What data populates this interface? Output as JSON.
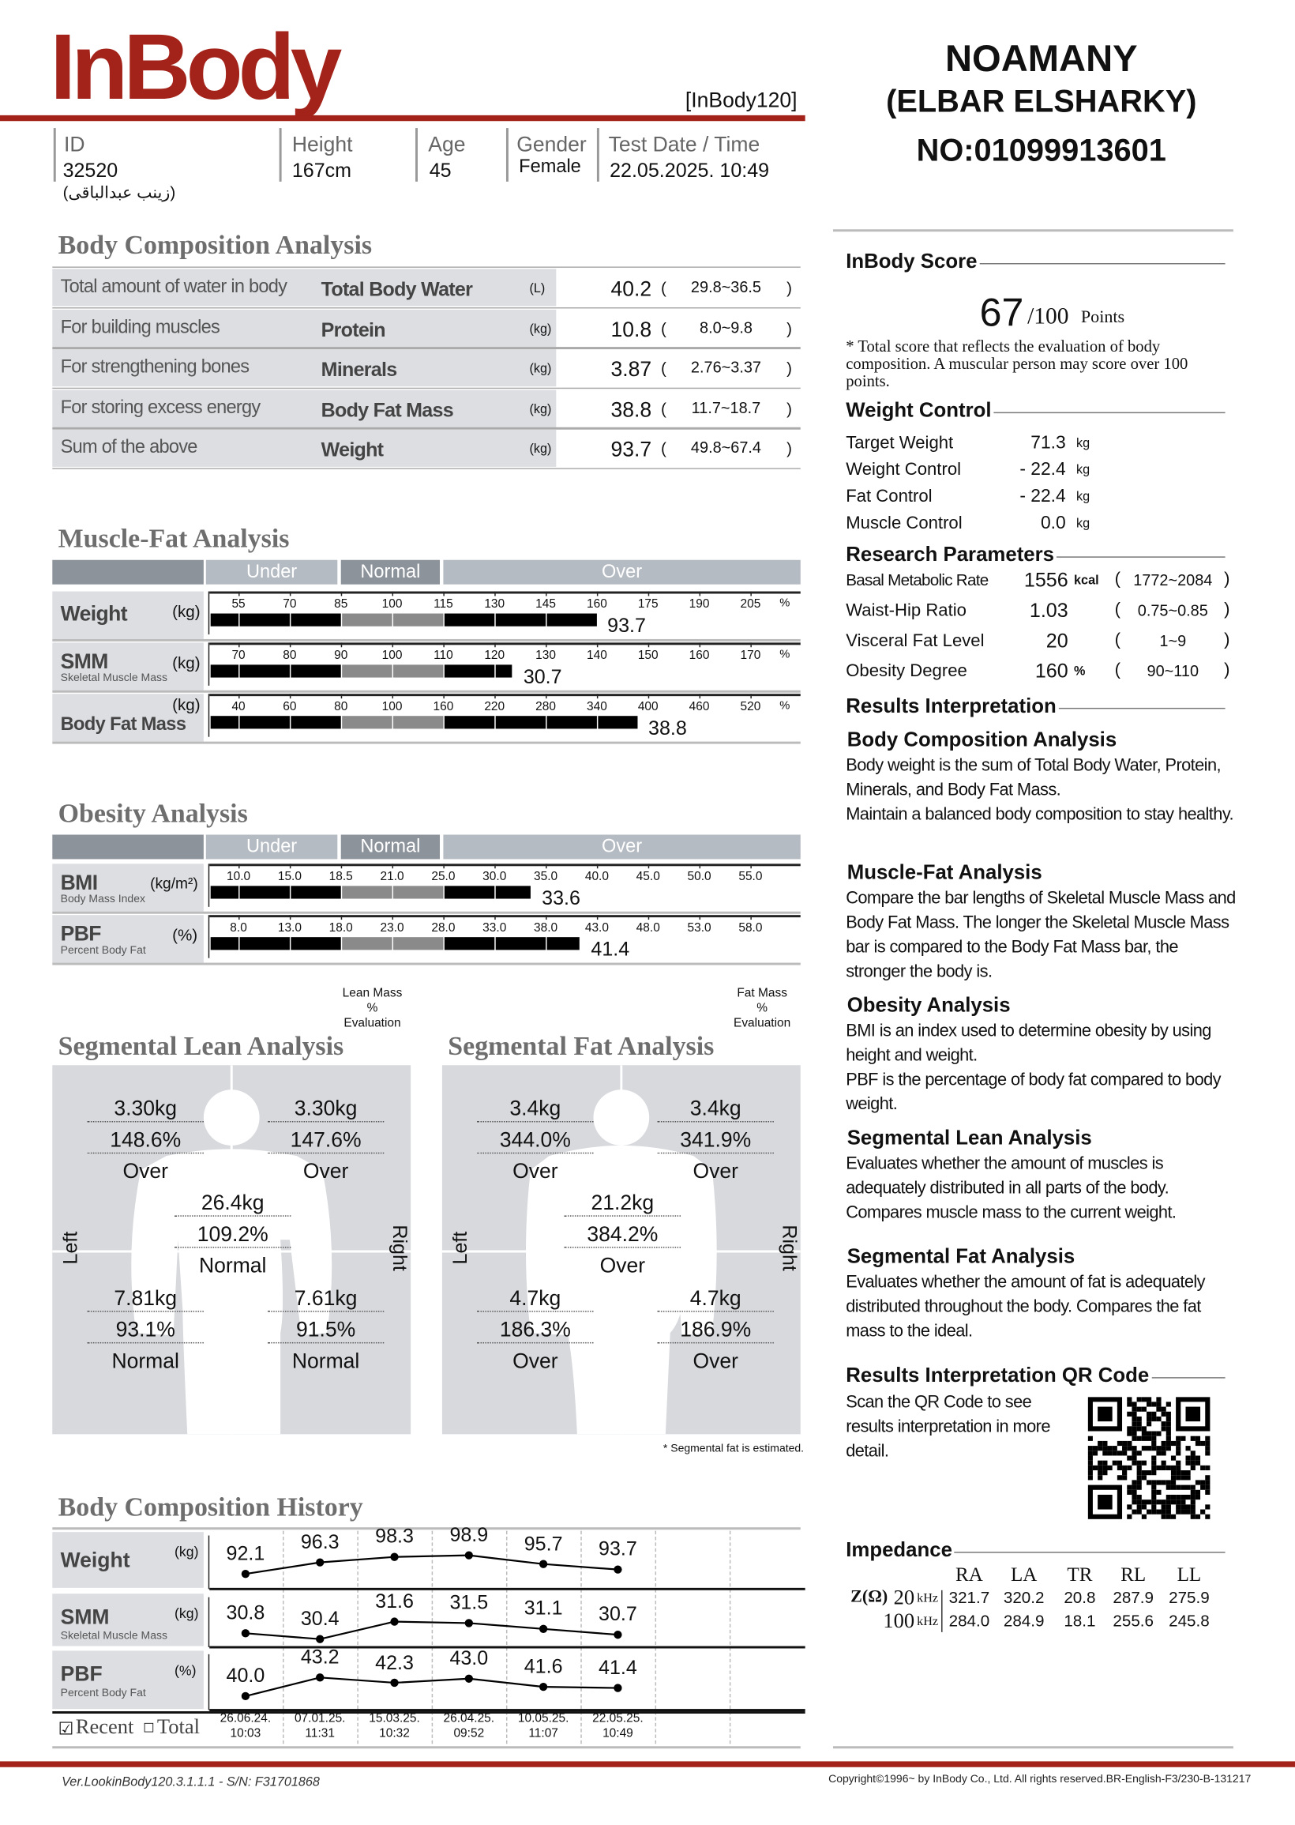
{
  "header": {
    "logo": "InBody",
    "model": "[InBody120]",
    "brand_color": "#a3231a",
    "id_label": "ID",
    "id": "32520",
    "name": "(زينب عبدالباقى)",
    "height_label": "Height",
    "height": "167cm",
    "age_label": "Age",
    "age": "45",
    "gender_label": "Gender",
    "gender": "Female",
    "date_label": "Test Date / Time",
    "date": "22.05.2025. 10:49"
  },
  "clinic": {
    "line1": "NOAMANY",
    "line2": "(ELBAR ELSHARKY)",
    "line3": "NO:01099913601"
  },
  "bca": {
    "title": "Body Composition Analysis",
    "rows": [
      {
        "desc": "Total amount of water in body",
        "name": "Total Body Water",
        "unit": "(L)",
        "value": "40.2",
        "range": "29.8~36.5"
      },
      {
        "desc": "For building muscles",
        "name": "Protein",
        "unit": "(kg)",
        "value": "10.8",
        "range": "8.0~9.8"
      },
      {
        "desc": "For strengthening bones",
        "name": "Minerals",
        "unit": "(kg)",
        "value": "3.87",
        "range": "2.76~3.37"
      },
      {
        "desc": "For storing excess energy",
        "name": "Body Fat Mass",
        "unit": "(kg)",
        "value": "38.8",
        "range": "11.7~18.7"
      },
      {
        "desc": "Sum of the above",
        "name": "Weight",
        "unit": "(kg)",
        "value": "93.7",
        "range": "49.8~67.4"
      }
    ]
  },
  "mfa": {
    "title": "Muscle-Fat Analysis",
    "bands": [
      "Under",
      "Normal",
      "Over"
    ],
    "rows": [
      {
        "name": "Weight",
        "sub": "",
        "unit": "(kg)",
        "ticks": [
          "55",
          "70",
          "85",
          "100",
          "115",
          "130",
          "145",
          "160",
          "175",
          "190",
          "205"
        ],
        "tick_unit": "%",
        "value": "93.7",
        "percent_of_standard": 160
      },
      {
        "name": "SMM",
        "sub": "Skeletal Muscle Mass",
        "unit": "(kg)",
        "ticks": [
          "70",
          "80",
          "90",
          "100",
          "110",
          "120",
          "130",
          "140",
          "150",
          "160",
          "170"
        ],
        "tick_unit": "%",
        "value": "30.7",
        "percent_of_standard": 123.6
      },
      {
        "name": "Body Fat Mass",
        "sub": "",
        "unit": "(kg)",
        "ticks": [
          "40",
          "60",
          "80",
          "100",
          "160",
          "220",
          "280",
          "340",
          "400",
          "460",
          "520"
        ],
        "tick_unit": "%",
        "value": "38.8",
        "percent_of_standard": 388
      }
    ]
  },
  "oa": {
    "title": "Obesity Analysis",
    "bands": [
      "Under",
      "Normal",
      "Over"
    ],
    "rows": [
      {
        "name": "BMI",
        "sub": "Body Mass Index",
        "unit": "(kg/m²)",
        "ticks": [
          "10.0",
          "15.0",
          "18.5",
          "21.0",
          "25.0",
          "30.0",
          "35.0",
          "40.0",
          "45.0",
          "50.0",
          "55.0"
        ],
        "value": "33.6"
      },
      {
        "name": "PBF",
        "sub": "Percent Body Fat",
        "unit": "(%)",
        "ticks": [
          "8.0",
          "13.0",
          "18.0",
          "23.0",
          "28.0",
          "33.0",
          "38.0",
          "43.0",
          "48.0",
          "53.0",
          "58.0"
        ],
        "value": "41.4"
      }
    ]
  },
  "sla": {
    "title": "Segmental Lean Analysis",
    "legend": [
      "Lean Mass",
      "%",
      "Evaluation"
    ],
    "left": "Left",
    "right": "Right",
    "segments": [
      {
        "name": "left-arm",
        "kg": "3.30kg",
        "pct": "148.6%",
        "eval": "Over"
      },
      {
        "name": "right-arm",
        "kg": "3.30kg",
        "pct": "147.6%",
        "eval": "Over"
      },
      {
        "name": "trunk",
        "kg": "26.4kg",
        "pct": "109.2%",
        "eval": "Normal"
      },
      {
        "name": "left-leg",
        "kg": "7.81kg",
        "pct": "93.1%",
        "eval": "Normal"
      },
      {
        "name": "right-leg",
        "kg": "7.61kg",
        "pct": "91.5%",
        "eval": "Normal"
      }
    ]
  },
  "sfa": {
    "title": "Segmental Fat Analysis",
    "legend": [
      "Fat Mass",
      "%",
      "Evaluation"
    ],
    "left": "Left",
    "right": "Right",
    "note": "* Segmental fat is estimated.",
    "segments": [
      {
        "name": "left-arm",
        "kg": "3.4kg",
        "pct": "344.0%",
        "eval": "Over"
      },
      {
        "name": "right-arm",
        "kg": "3.4kg",
        "pct": "341.9%",
        "eval": "Over"
      },
      {
        "name": "trunk",
        "kg": "21.2kg",
        "pct": "384.2%",
        "eval": "Over"
      },
      {
        "name": "left-leg",
        "kg": "4.7kg",
        "pct": "186.3%",
        "eval": "Over"
      },
      {
        "name": "right-leg",
        "kg": "4.7kg",
        "pct": "186.9%",
        "eval": "Over"
      }
    ]
  },
  "history": {
    "title": "Body Composition History",
    "recent_label": "Recent",
    "total_label": "Total",
    "recent_checked": true,
    "dates": [
      [
        "26.06.24.",
        "10:03"
      ],
      [
        "07.01.25.",
        "11:31"
      ],
      [
        "15.03.25.",
        "10:32"
      ],
      [
        "26.04.25.",
        "09:52"
      ],
      [
        "10.05.25.",
        "11:07"
      ],
      [
        "22.05.25.",
        "10:49"
      ]
    ],
    "rows": [
      {
        "name": "Weight",
        "sub": "",
        "unit": "(kg)",
        "values": [
          "92.1",
          "96.3",
          "98.3",
          "98.9",
          "95.7",
          "93.7"
        ]
      },
      {
        "name": "SMM",
        "sub": "Skeletal Muscle Mass",
        "unit": "(kg)",
        "values": [
          "30.8",
          "30.4",
          "31.6",
          "31.5",
          "31.1",
          "30.7"
        ]
      },
      {
        "name": "PBF",
        "sub": "Percent Body Fat",
        "unit": "(%)",
        "values": [
          "40.0",
          "43.2",
          "42.3",
          "43.0",
          "41.6",
          "41.4"
        ]
      }
    ]
  },
  "score": {
    "title": "InBody Score",
    "value": "67",
    "max": "/100",
    "unit": "Points",
    "note": "* Total score that reflects the evaluation of body composition. A muscular person may score over 100 points."
  },
  "weight_control": {
    "title": "Weight Control",
    "rows": [
      {
        "label": "Target Weight",
        "value": "71.3",
        "unit": "kg"
      },
      {
        "label": "Weight Control",
        "value": "- 22.4",
        "unit": "kg"
      },
      {
        "label": "Fat Control",
        "value": "- 22.4",
        "unit": "kg"
      },
      {
        "label": "Muscle Control",
        "value": "0.0",
        "unit": "kg"
      }
    ]
  },
  "research": {
    "title": "Research Parameters",
    "rows": [
      {
        "label": "Basal Metabolic Rate",
        "value": "1556",
        "unit": "kcal",
        "range": "1772~2084"
      },
      {
        "label": "Waist-Hip Ratio",
        "value": "1.03",
        "unit": "",
        "range": "0.75~0.85"
      },
      {
        "label": "Visceral Fat Level",
        "value": "20",
        "unit": "",
        "range": "1~9"
      },
      {
        "label": "Obesity Degree",
        "value": "160",
        "unit": "%",
        "range": "90~110"
      }
    ]
  },
  "results": {
    "title": "Results Interpretation",
    "items": [
      {
        "heading": "Body Composition Analysis",
        "text": "Body weight is the sum of Total Body Water, Protein, Minerals, and Body Fat Mass.\nMaintain a balanced body composition to stay healthy."
      },
      {
        "heading": "Muscle-Fat Analysis",
        "text": "Compare the bar lengths of Skeletal Muscle Mass and Body Fat Mass. The longer the Skeletal Muscle Mass bar is compared to the Body Fat Mass bar, the stronger the body is."
      },
      {
        "heading": "Obesity Analysis",
        "text": "BMI is an index used to determine obesity by using height and weight.\nPBF is the percentage of body fat compared to body weight."
      },
      {
        "heading": "Segmental Lean Analysis",
        "text": "Evaluates whether the amount of muscles is adequately distributed in all parts of the body. Compares muscle mass to the current weight."
      },
      {
        "heading": "Segmental Fat Analysis",
        "text": "Evaluates whether the amount of fat is adequately distributed throughout the body. Compares the fat mass to the ideal."
      }
    ]
  },
  "qr": {
    "title": "Results Interpretation QR Code",
    "text": "Scan the QR Code to see results interpretation in more detail."
  },
  "impedance": {
    "title": "Impedance",
    "symbol": "Z(Ω)",
    "cols": [
      "RA",
      "LA",
      "TR",
      "RL",
      "LL"
    ],
    "rows": [
      {
        "freq": "20",
        "unit": "kHz",
        "values": [
          "321.7",
          "320.2",
          "20.8",
          "287.9",
          "275.9"
        ]
      },
      {
        "freq": "100",
        "unit": "kHz",
        "values": [
          "284.0",
          "284.9",
          "18.1",
          "255.6",
          "245.8"
        ]
      }
    ]
  },
  "footer": {
    "version": "Ver.LookinBody120.3.1.1.1 - S/N: F31701868",
    "copyright": "Copyright©1996~ by InBody Co., Ltd. All rights reserved.BR-English-F3/230-B-131217"
  }
}
